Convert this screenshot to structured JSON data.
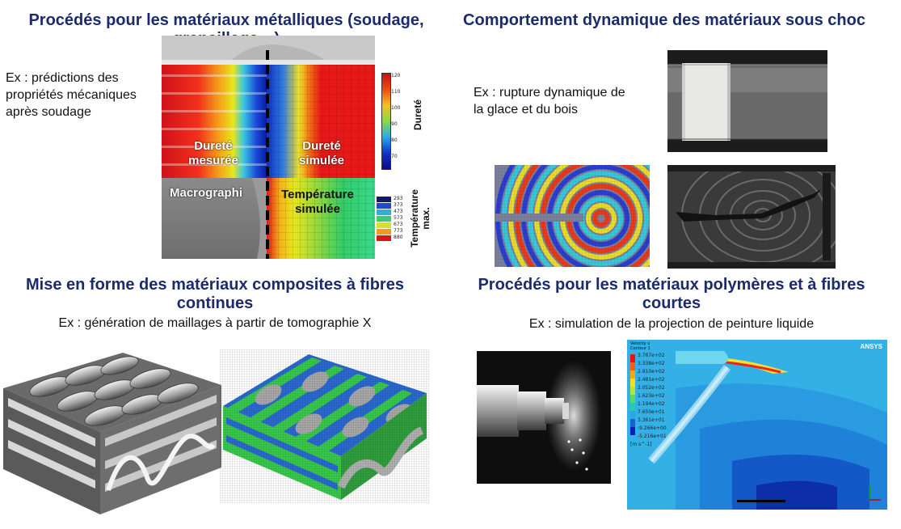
{
  "quadrants": {
    "metals": {
      "title": "Procédés pour les matériaux métalliques (soudage, grenaillage…)",
      "example": "Ex : prédictions des propriétés mécaniques après soudage",
      "overlays": {
        "measured": "Dureté\nmesurée",
        "simulated": "Dureté\nsimulée",
        "macro": "Macrographi",
        "temp": "Température\nsimulée"
      },
      "hardness_label": "Dureté",
      "hardness_ticks": [
        "120",
        "110",
        "100",
        "90",
        "80",
        "70"
      ],
      "temp_label": "Température\nmax.",
      "temp_ticks": [
        "293",
        "373",
        "473",
        "573",
        "673",
        "773",
        "880"
      ]
    },
    "impact": {
      "title": "Comportement dynamique des matériaux sous choc",
      "example": "Ex : rupture dynamique de la glace et du bois"
    },
    "composites": {
      "title": "Mise en forme des matériaux composites à fibres continues",
      "example": "Ex : génération de maillages à partir de tomographie X"
    },
    "polymers": {
      "title": "Procédés pour les matériaux polymères et à fibres courtes",
      "example": "Ex : simulation de la projection de peinture liquide",
      "ansys": {
        "brand": "ANSYS",
        "legend_title": "Velocity u\nContour 1",
        "values": [
          "3.767e+02",
          "3.338e+02",
          "2.910e+02",
          "2.481e+02",
          "2.052e+02",
          "1.623e+02",
          "1.194e+02",
          "7.650e+01",
          "3.361e+01",
          "-9.266e+00",
          "-5.216e+01"
        ],
        "unit": "[m s^-1]"
      }
    }
  }
}
